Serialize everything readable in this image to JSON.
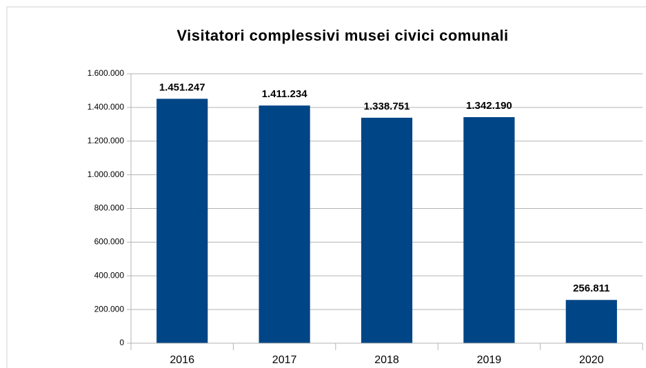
{
  "chart_data": {
    "type": "bar",
    "title": "Visitatori complessivi musei civici comunali",
    "categories": [
      "2016",
      "2017",
      "2018",
      "2019",
      "2020"
    ],
    "values": [
      1451247,
      1411234,
      1338751,
      1342190,
      256811
    ],
    "value_labels": [
      "1.451.247",
      "1.411.234",
      "1.338.751",
      "1.342.190",
      "256.811"
    ],
    "color": "#004586",
    "ylim": [
      0,
      1600000
    ],
    "yticks": [
      0,
      {
        "value": 200000,
        "label": "200.000"
      },
      {
        "value": 400000,
        "label": "400.000"
      },
      {
        "value": 600000,
        "label": "600.000"
      },
      {
        "value": 800000,
        "label": "800.000"
      },
      {
        "value": 1000000,
        "label": "1.000.000"
      },
      {
        "value": 1200000,
        "label": "1.200.000"
      },
      {
        "value": 1400000,
        "label": "1.400.000"
      },
      {
        "value": 1600000,
        "label": "1.600.000"
      }
    ],
    "grid": true
  }
}
